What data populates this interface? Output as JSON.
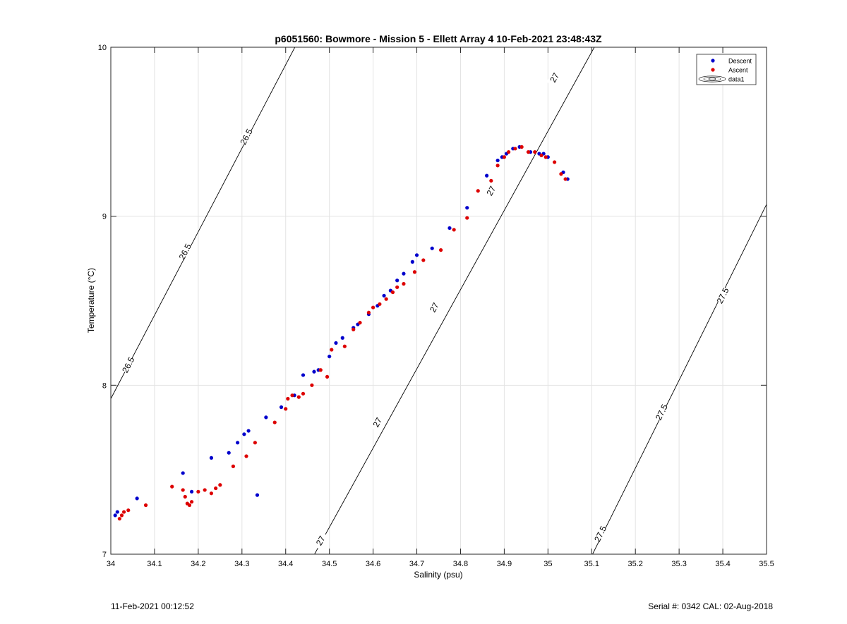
{
  "footer": {
    "timestamp": "11-Feb-2021 00:12:52",
    "serial_cal": "Serial #: 0342  CAL: 02-Aug-2018"
  },
  "colors": {
    "descent": "#0000cc",
    "ascent": "#dd0000",
    "grid": "#e3e3e3",
    "contour": "#000000"
  },
  "chart_data": {
    "type": "scatter",
    "title": "p6051560: Bowmore - Mission 5 - Ellett Array 4 10-Feb-2021 23:48:43Z",
    "xlabel": "Salinity (psu)",
    "ylabel": "Temperature (°C)",
    "xlim": [
      34,
      35.5
    ],
    "ylim": [
      7,
      10
    ],
    "xticks": [
      34,
      34.1,
      34.2,
      34.3,
      34.4,
      34.5,
      34.6,
      34.7,
      34.8,
      34.9,
      35,
      35.1,
      35.2,
      35.3,
      35.4,
      35.5
    ],
    "xtick_labels": [
      "34",
      "34.1",
      "34.2",
      "34.3",
      "34.4",
      "34.5",
      "34.6",
      "34.7",
      "34.8",
      "34.9",
      "35",
      "35.1",
      "35.2",
      "35.3",
      "35.4",
      "35.5"
    ],
    "yticks": [
      7,
      8,
      9,
      10
    ],
    "ytick_labels": [
      "7",
      "8",
      "9",
      "10"
    ],
    "grid": true,
    "legend_position": "top-right",
    "legend": [
      "Descent",
      "Ascent",
      "data1"
    ],
    "contours": [
      {
        "level": "26.5",
        "points": [
          [
            34.0,
            7.92
          ],
          [
            34.421,
            10.0
          ]
        ],
        "labels": [
          [
            34.04,
            8.12
          ],
          [
            34.17,
            8.79
          ],
          [
            34.31,
            9.47
          ]
        ]
      },
      {
        "level": "27",
        "points": [
          [
            34.466,
            7.0
          ],
          [
            35.106,
            10.0
          ]
        ],
        "labels": [
          [
            34.48,
            7.08
          ],
          [
            34.61,
            7.78
          ],
          [
            34.74,
            8.46
          ],
          [
            34.87,
            9.15
          ],
          [
            35.015,
            9.82
          ]
        ]
      },
      {
        "level": "27.5",
        "points": [
          [
            35.102,
            7.0
          ],
          [
            35.5,
            9.07
          ]
        ],
        "labels": [
          [
            35.12,
            7.12
          ],
          [
            35.26,
            7.84
          ],
          [
            35.4,
            8.53
          ]
        ]
      }
    ],
    "series": [
      {
        "name": "Descent",
        "points": [
          [
            34.01,
            7.23
          ],
          [
            34.015,
            7.25
          ],
          [
            34.06,
            7.33
          ],
          [
            34.165,
            7.48
          ],
          [
            34.185,
            7.37
          ],
          [
            34.23,
            7.57
          ],
          [
            34.27,
            7.6
          ],
          [
            34.29,
            7.66
          ],
          [
            34.305,
            7.71
          ],
          [
            34.315,
            7.73
          ],
          [
            34.335,
            7.35
          ],
          [
            34.355,
            7.81
          ],
          [
            34.39,
            7.87
          ],
          [
            34.42,
            7.94
          ],
          [
            34.44,
            8.06
          ],
          [
            34.465,
            8.08
          ],
          [
            34.475,
            8.09
          ],
          [
            34.5,
            8.17
          ],
          [
            34.515,
            8.25
          ],
          [
            34.53,
            8.28
          ],
          [
            34.555,
            8.34
          ],
          [
            34.565,
            8.36
          ],
          [
            34.59,
            8.42
          ],
          [
            34.61,
            8.47
          ],
          [
            34.625,
            8.53
          ],
          [
            34.64,
            8.56
          ],
          [
            34.655,
            8.62
          ],
          [
            34.67,
            8.66
          ],
          [
            34.69,
            8.73
          ],
          [
            34.7,
            8.77
          ],
          [
            34.735,
            8.81
          ],
          [
            34.775,
            8.93
          ],
          [
            34.815,
            9.05
          ],
          [
            34.86,
            9.24
          ],
          [
            34.885,
            9.33
          ],
          [
            34.895,
            9.35
          ],
          [
            34.905,
            9.37
          ],
          [
            34.92,
            9.4
          ],
          [
            34.935,
            9.41
          ],
          [
            34.96,
            9.38
          ],
          [
            34.98,
            9.37
          ],
          [
            34.99,
            9.37
          ],
          [
            35.0,
            9.35
          ],
          [
            35.035,
            9.26
          ],
          [
            35.045,
            9.22
          ]
        ]
      },
      {
        "name": "Ascent",
        "points": [
          [
            34.02,
            7.21
          ],
          [
            34.025,
            7.23
          ],
          [
            34.03,
            7.25
          ],
          [
            34.04,
            7.26
          ],
          [
            34.08,
            7.29
          ],
          [
            34.14,
            7.4
          ],
          [
            34.165,
            7.38
          ],
          [
            34.17,
            7.34
          ],
          [
            34.175,
            7.3
          ],
          [
            34.18,
            7.29
          ],
          [
            34.185,
            7.31
          ],
          [
            34.2,
            7.37
          ],
          [
            34.215,
            7.38
          ],
          [
            34.23,
            7.36
          ],
          [
            34.24,
            7.39
          ],
          [
            34.25,
            7.41
          ],
          [
            34.28,
            7.52
          ],
          [
            34.31,
            7.58
          ],
          [
            34.33,
            7.66
          ],
          [
            34.375,
            7.78
          ],
          [
            34.4,
            7.86
          ],
          [
            34.405,
            7.92
          ],
          [
            34.415,
            7.94
          ],
          [
            34.43,
            7.93
          ],
          [
            34.44,
            7.95
          ],
          [
            34.46,
            8.0
          ],
          [
            34.48,
            8.09
          ],
          [
            34.495,
            8.05
          ],
          [
            34.505,
            8.21
          ],
          [
            34.535,
            8.23
          ],
          [
            34.555,
            8.33
          ],
          [
            34.57,
            8.37
          ],
          [
            34.59,
            8.43
          ],
          [
            34.6,
            8.46
          ],
          [
            34.615,
            8.48
          ],
          [
            34.63,
            8.51
          ],
          [
            34.645,
            8.55
          ],
          [
            34.655,
            8.58
          ],
          [
            34.67,
            8.6
          ],
          [
            34.695,
            8.67
          ],
          [
            34.715,
            8.74
          ],
          [
            34.755,
            8.8
          ],
          [
            34.785,
            8.92
          ],
          [
            34.815,
            8.99
          ],
          [
            34.84,
            9.15
          ],
          [
            34.87,
            9.21
          ],
          [
            34.885,
            9.3
          ],
          [
            34.9,
            9.35
          ],
          [
            34.91,
            9.38
          ],
          [
            34.925,
            9.4
          ],
          [
            34.94,
            9.41
          ],
          [
            34.955,
            9.38
          ],
          [
            34.97,
            9.38
          ],
          [
            34.985,
            9.36
          ],
          [
            34.995,
            9.35
          ],
          [
            35.015,
            9.32
          ],
          [
            35.03,
            9.25
          ],
          [
            35.04,
            9.22
          ]
        ]
      }
    ]
  }
}
